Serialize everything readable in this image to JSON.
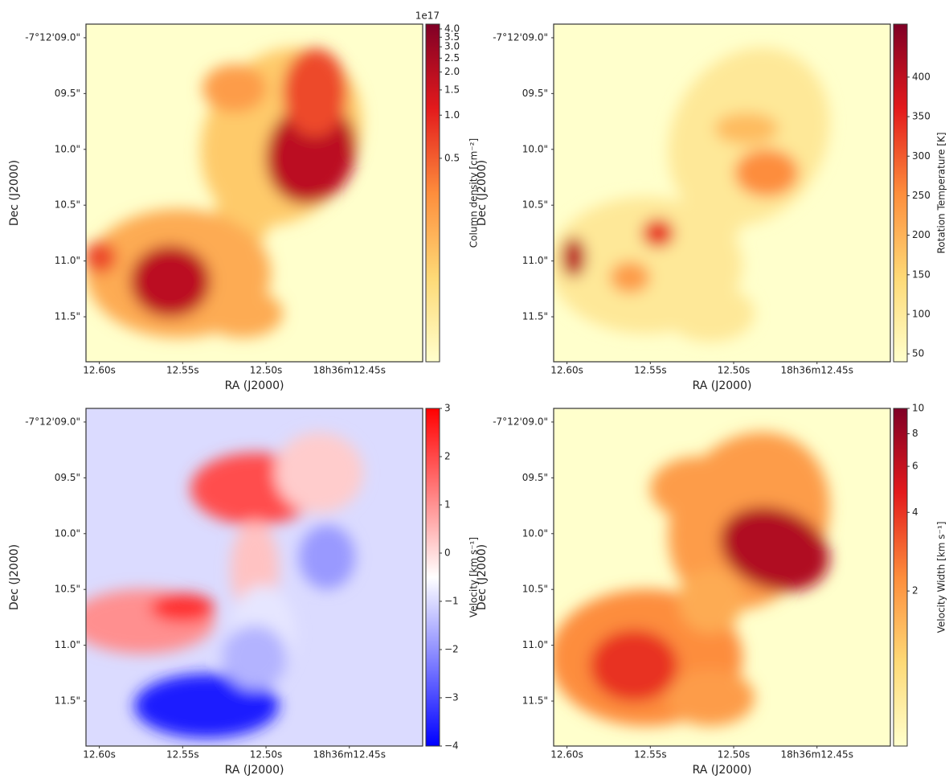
{
  "chart_data": [
    {
      "type": "heatmap",
      "xlabel": "RA (J2000)",
      "ylabel": "Dec (J2000)",
      "xlim": [
        12.608,
        12.406
      ],
      "ylim": [
        11.903,
        8.878
      ],
      "xticks": [
        {
          "value": 12.6,
          "label": "12.60s"
        },
        {
          "value": 12.55,
          "label": "12.55s"
        },
        {
          "value": 12.5,
          "label": "12.50s"
        },
        {
          "value": 12.45,
          "label": "18h36m12.45s"
        }
      ],
      "yticks": [
        {
          "value": 9.0,
          "label": "-7°12'09.0\""
        },
        {
          "value": 9.5,
          "label": "09.5\""
        },
        {
          "value": 10.0,
          "label": "10.0\""
        },
        {
          "value": 10.5,
          "label": "10.5\""
        },
        {
          "value": 11.0,
          "label": "11.0\""
        },
        {
          "value": 11.5,
          "label": "11.5\""
        }
      ],
      "colorbar": {
        "label": "Column density [cm⁻²]",
        "offset_label": "1e17",
        "scale": "log",
        "lim": [
          0.019,
          4.32
        ],
        "ticks": [
          0.5,
          {
            "value": 1,
            "label": "1.0"
          },
          1.5,
          {
            "value": 2,
            "label": "2.0"
          },
          2.5,
          {
            "value": 3,
            "label": "3.0"
          },
          3.5,
          {
            "value": 4,
            "label": "4.0"
          }
        ],
        "colormap": [
          "#ffffcc",
          "#fed976",
          "#fd8d3c",
          "#e31a1c",
          "#800026"
        ]
      }
    },
    {
      "type": "heatmap",
      "xlabel": "RA (J2000)",
      "ylabel": "Dec (J2000)",
      "xlim": [
        12.608,
        12.406
      ],
      "ylim": [
        11.903,
        8.878
      ],
      "xticks": [
        {
          "value": 12.6,
          "label": "12.60s"
        },
        {
          "value": 12.55,
          "label": "12.55s"
        },
        {
          "value": 12.5,
          "label": "12.50s"
        },
        {
          "value": 12.45,
          "label": "18h36m12.45s"
        }
      ],
      "yticks": [
        {
          "value": 9.0,
          "label": "-7°12'09.0\""
        },
        {
          "value": 9.5,
          "label": "09.5\""
        },
        {
          "value": 10.0,
          "label": "10.0\""
        },
        {
          "value": 10.5,
          "label": "10.5\""
        },
        {
          "value": 11.0,
          "label": "11.0\""
        },
        {
          "value": 11.5,
          "label": "11.5\""
        }
      ],
      "colorbar": {
        "label": "Rotation Temperature [K]",
        "scale": "linear",
        "lim": [
          40,
          467
        ],
        "ticks": [
          50,
          100,
          150,
          200,
          250,
          300,
          350,
          400
        ],
        "colormap": [
          "#ffffcc",
          "#fed976",
          "#fd8d3c",
          "#e31a1c",
          "#800026"
        ]
      }
    },
    {
      "type": "heatmap",
      "xlabel": "RA (J2000)",
      "ylabel": "Dec (J2000)",
      "xlim": [
        12.608,
        12.406
      ],
      "ylim": [
        11.903,
        8.878
      ],
      "xticks": [
        {
          "value": 12.6,
          "label": "12.60s"
        },
        {
          "value": 12.55,
          "label": "12.55s"
        },
        {
          "value": 12.5,
          "label": "12.50s"
        },
        {
          "value": 12.45,
          "label": "18h36m12.45s"
        }
      ],
      "yticks": [
        {
          "value": 9.0,
          "label": "-7°12'09.0\""
        },
        {
          "value": 9.5,
          "label": "09.5\""
        },
        {
          "value": 10.0,
          "label": "10.0\""
        },
        {
          "value": 10.5,
          "label": "10.5\""
        },
        {
          "value": 11.0,
          "label": "11.0\""
        },
        {
          "value": 11.5,
          "label": "11.5\""
        }
      ],
      "colorbar": {
        "label": "Velocity [km s⁻¹]",
        "scale": "linear",
        "lim": [
          -4,
          3
        ],
        "ticks": [
          {
            "value": -4,
            "label": "−4"
          },
          {
            "value": -3,
            "label": "−3"
          },
          {
            "value": -2,
            "label": "−2"
          },
          {
            "value": -1,
            "label": "−1"
          },
          0,
          1,
          2,
          3
        ],
        "colormap": [
          "#0000ff",
          "#ffffff",
          "#ff0000"
        ]
      }
    },
    {
      "type": "heatmap",
      "xlabel": "RA (J2000)",
      "ylabel": "Dec (J2000)",
      "xlim": [
        12.608,
        12.406
      ],
      "ylim": [
        11.903,
        8.878
      ],
      "xticks": [
        {
          "value": 12.6,
          "label": "12.60s"
        },
        {
          "value": 12.55,
          "label": "12.55s"
        },
        {
          "value": 12.5,
          "label": "12.50s"
        },
        {
          "value": 12.45,
          "label": "18h36m12.45s"
        }
      ],
      "yticks": [
        {
          "value": 9.0,
          "label": "-7°12'09.0\""
        },
        {
          "value": 9.5,
          "label": "09.5\""
        },
        {
          "value": 10.0,
          "label": "10.0\""
        },
        {
          "value": 10.5,
          "label": "10.5\""
        },
        {
          "value": 11.0,
          "label": "11.0\""
        },
        {
          "value": 11.5,
          "label": "11.5\""
        }
      ],
      "colorbar": {
        "label": "Velocity Width [km s⁻¹]",
        "scale": "log",
        "lim": [
          0.51,
          10
        ],
        "ticks": [
          2,
          4,
          6,
          8,
          10
        ],
        "colormap": [
          "#ffffcc",
          "#fed976",
          "#fd8d3c",
          "#e31a1c",
          "#800026"
        ]
      }
    }
  ]
}
